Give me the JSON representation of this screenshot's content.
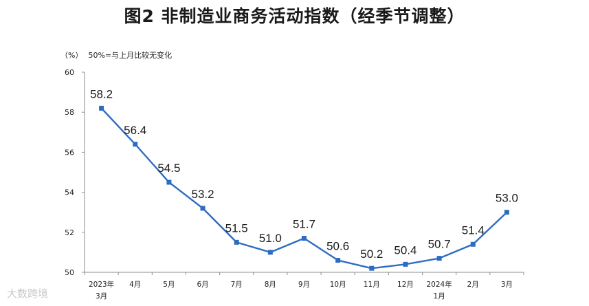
{
  "chart_data": {
    "type": "line",
    "title": "图2 非制造业商务活动指数（经季节调整）",
    "ylabel": "（%）",
    "note": "50%=与上月比较无变化",
    "categories": [
      [
        "2023年",
        "3月"
      ],
      [
        "4月"
      ],
      [
        "5月"
      ],
      [
        "6月"
      ],
      [
        "7月"
      ],
      [
        "8月"
      ],
      [
        "9月"
      ],
      [
        "10月"
      ],
      [
        "11月"
      ],
      [
        "12月"
      ],
      [
        "2024年",
        "1月"
      ],
      [
        "2月"
      ],
      [
        "3月"
      ]
    ],
    "series": [
      {
        "values": [
          58.2,
          56.4,
          54.5,
          53.2,
          51.5,
          51.0,
          51.7,
          50.6,
          50.2,
          50.4,
          50.7,
          51.4,
          53.0
        ],
        "labels": [
          "58.2",
          "56.4",
          "54.5",
          "53.2",
          "51.5",
          "51.0",
          "51.7",
          "50.6",
          "50.2",
          "50.4",
          "50.7",
          "51.4",
          "53.0"
        ],
        "color": "#2e6cc3"
      }
    ],
    "ylim": [
      50,
      60
    ],
    "yticks": [
      50,
      52,
      54,
      56,
      58,
      60
    ],
    "grid": false
  },
  "watermark": "大数跨境"
}
